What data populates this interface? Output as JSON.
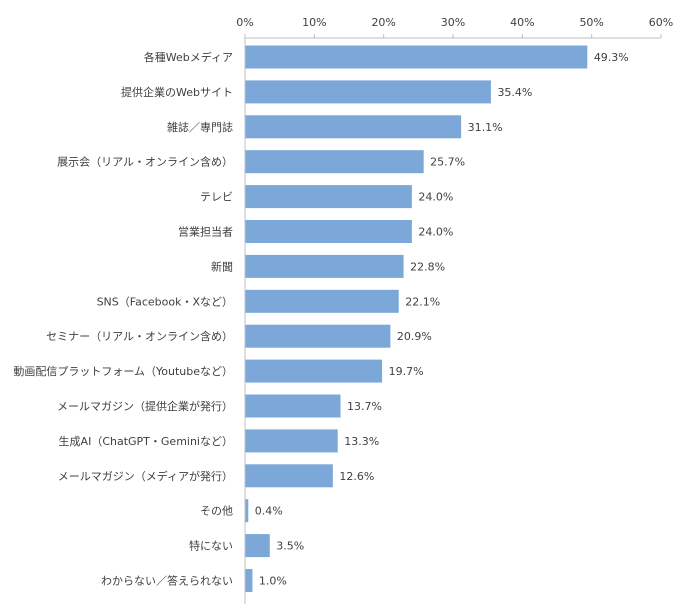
{
  "chart_data": {
    "type": "bar",
    "orientation": "horizontal",
    "title": "",
    "xlabel": "",
    "ylabel": "",
    "xlim": [
      0,
      60
    ],
    "x_ticks": [
      "0%",
      "10%",
      "20%",
      "30%",
      "40%",
      "50%",
      "60%"
    ],
    "x_tick_values": [
      0,
      10,
      20,
      30,
      40,
      50,
      60
    ],
    "x_axis_position": "top",
    "grid": false,
    "legend": "none",
    "bar_color": "#7ba8d9",
    "categories": [
      "各種Webメディア",
      "提供企業のWebサイト",
      "雑誌／専門誌",
      "展示会（リアル・オンライン含め）",
      "テレビ",
      "営業担当者",
      "新聞",
      "SNS（Facebook・Xなど）",
      "セミナー（リアル・オンライン含め）",
      "動画配信プラットフォーム（Youtubeなど）",
      "メールマガジン（提供企業が発行）",
      "生成AI（ChatGPT・Geminiなど）",
      "メールマガジン（メディアが発行）",
      "その他",
      "特にない",
      "わからない／答えられない"
    ],
    "values": [
      49.3,
      35.4,
      31.1,
      25.7,
      24.0,
      24.0,
      22.8,
      22.1,
      20.9,
      19.7,
      13.7,
      13.3,
      12.6,
      0.4,
      3.5,
      1.0
    ],
    "value_labels": [
      "49.3%",
      "35.4%",
      "31.1%",
      "25.7%",
      "24.0%",
      "24.0%",
      "22.8%",
      "22.1%",
      "20.9%",
      "19.7%",
      "13.7%",
      "13.3%",
      "12.6%",
      "0.4%",
      "3.5%",
      "1.0%"
    ]
  }
}
